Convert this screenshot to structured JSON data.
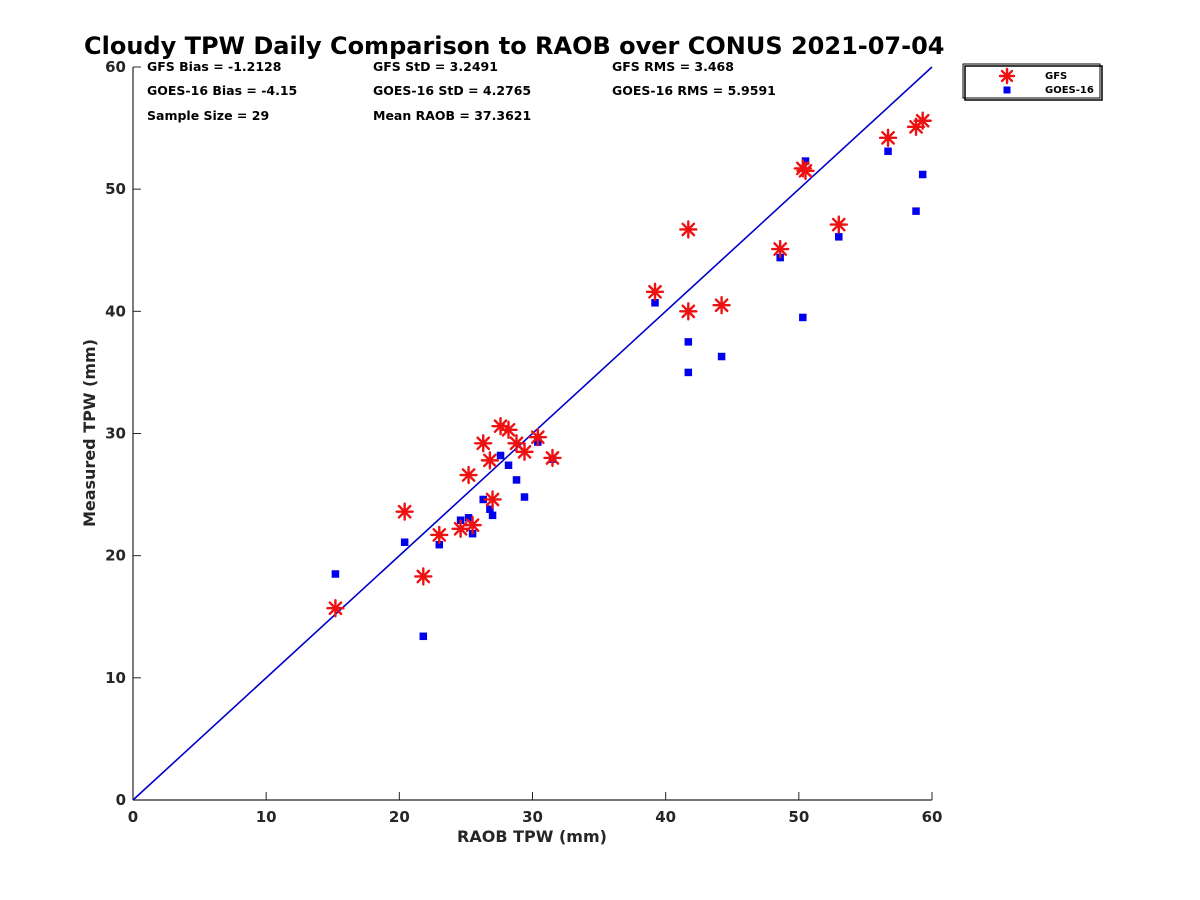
{
  "chart_data": {
    "type": "scatter",
    "title": "Cloudy TPW Daily Comparison to RAOB over CONUS 2021-07-04",
    "xlabel": "RAOB TPW (mm)",
    "ylabel": "Measured TPW (mm)",
    "xlim": [
      0,
      60
    ],
    "ylim": [
      0,
      60
    ],
    "xticks": [
      "0",
      "10",
      "20",
      "30",
      "40",
      "50",
      "60"
    ],
    "yticks": [
      "0",
      "10",
      "20",
      "30",
      "40",
      "50",
      "60"
    ],
    "grid": false,
    "legend_position": "outside top-right",
    "stats": [
      "GFS Bias = -1.2128",
      "GFS StD = 3.2491",
      "GFS RMS = 3.468",
      "GOES-16 Bias = -4.15",
      "GOES-16 StD = 4.2765",
      "GOES-16 RMS = 5.9591",
      "Sample Size = 29",
      "Mean RAOB = 37.3621"
    ],
    "reference_line": {
      "label": "",
      "from": [
        0,
        0
      ],
      "to": [
        60,
        60
      ],
      "color": "#0000cc"
    },
    "series": [
      {
        "name": "GFS",
        "marker": "asterisk",
        "color": "#ee1111",
        "points": [
          [
            15.2,
            15.7
          ],
          [
            20.4,
            23.6
          ],
          [
            21.8,
            18.3
          ],
          [
            23.0,
            21.7
          ],
          [
            24.6,
            22.2
          ],
          [
            25.2,
            26.6
          ],
          [
            25.5,
            22.5
          ],
          [
            26.3,
            29.2
          ],
          [
            26.8,
            27.8
          ],
          [
            27.0,
            24.6
          ],
          [
            27.6,
            30.6
          ],
          [
            28.2,
            30.3
          ],
          [
            28.8,
            29.2
          ],
          [
            29.4,
            28.5
          ],
          [
            30.4,
            29.7
          ],
          [
            31.5,
            28.0
          ],
          [
            39.2,
            41.6
          ],
          [
            41.7,
            46.7
          ],
          [
            41.7,
            40.0
          ],
          [
            44.2,
            40.5
          ],
          [
            48.6,
            45.1
          ],
          [
            50.3,
            51.7
          ],
          [
            50.5,
            51.5
          ],
          [
            53.0,
            47.1
          ],
          [
            56.7,
            54.2
          ],
          [
            58.8,
            55.1
          ],
          [
            59.3,
            55.6
          ]
        ]
      },
      {
        "name": "GOES-16",
        "marker": "square",
        "color": "#0000ee",
        "points": [
          [
            15.2,
            18.5
          ],
          [
            20.4,
            21.1
          ],
          [
            21.8,
            13.4
          ],
          [
            23.0,
            20.9
          ],
          [
            24.6,
            22.9
          ],
          [
            25.2,
            23.1
          ],
          [
            25.5,
            21.8
          ],
          [
            26.3,
            24.6
          ],
          [
            26.8,
            23.8
          ],
          [
            27.0,
            23.3
          ],
          [
            27.6,
            28.2
          ],
          [
            28.2,
            27.4
          ],
          [
            28.8,
            26.2
          ],
          [
            29.4,
            24.8
          ],
          [
            30.4,
            29.3
          ],
          [
            31.5,
            27.9
          ],
          [
            39.2,
            40.7
          ],
          [
            41.7,
            37.5
          ],
          [
            41.7,
            35.0
          ],
          [
            44.2,
            36.3
          ],
          [
            48.6,
            44.4
          ],
          [
            50.3,
            39.5
          ],
          [
            50.5,
            52.3
          ],
          [
            53.0,
            46.1
          ],
          [
            56.7,
            53.1
          ],
          [
            58.8,
            48.2
          ],
          [
            59.3,
            51.2
          ]
        ]
      }
    ]
  }
}
